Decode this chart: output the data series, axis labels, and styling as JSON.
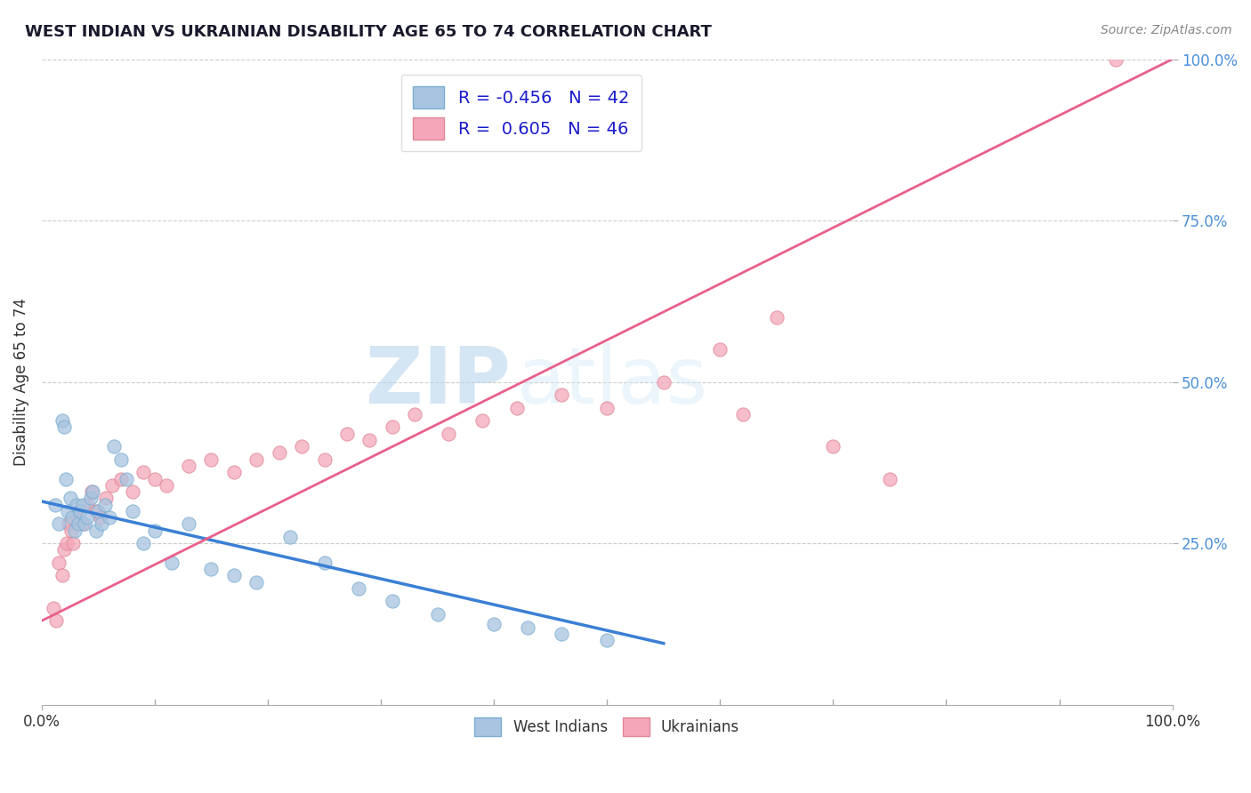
{
  "title": "WEST INDIAN VS UKRAINIAN DISABILITY AGE 65 TO 74 CORRELATION CHART",
  "source_text": "Source: ZipAtlas.com",
  "ylabel": "Disability Age 65 to 74",
  "xlim": [
    0,
    100
  ],
  "ylim": [
    0,
    100
  ],
  "ytick_positions": [
    25,
    50,
    75,
    100
  ],
  "west_indian_R": -0.456,
  "west_indian_N": 42,
  "ukrainian_R": 0.605,
  "ukrainian_N": 46,
  "west_indian_color": "#a8c4e0",
  "west_indian_edge_color": "#7aaed0",
  "ukrainian_color": "#f4a7b9",
  "ukrainian_edge_color": "#e08898",
  "west_indian_line_color": "#3a7fd5",
  "ukrainian_line_color": "#e8608a",
  "background_color": "#ffffff",
  "grid_color": "#cccccc",
  "title_color": "#1a1a2e",
  "watermark_zip": "ZIP",
  "watermark_atlas": "atlas",
  "wi_x": [
    1.2,
    1.5,
    1.8,
    2.0,
    2.1,
    2.3,
    2.5,
    2.7,
    2.9,
    3.1,
    3.2,
    3.4,
    3.6,
    3.8,
    4.0,
    4.3,
    4.5,
    4.8,
    5.0,
    5.3,
    5.6,
    6.0,
    6.4,
    7.0,
    7.5,
    8.0,
    9.0,
    10.0,
    11.5,
    13.0,
    15.0,
    17.0,
    19.0,
    22.0,
    25.0,
    28.0,
    31.0,
    35.0,
    40.0,
    43.0,
    46.0,
    50.0
  ],
  "wi_y": [
    31.0,
    28.0,
    44.0,
    43.0,
    35.0,
    30.0,
    32.0,
    29.0,
    27.0,
    31.0,
    28.0,
    30.0,
    31.0,
    28.0,
    29.0,
    32.0,
    33.0,
    27.0,
    30.0,
    28.0,
    31.0,
    29.0,
    40.0,
    38.0,
    35.0,
    30.0,
    25.0,
    27.0,
    22.0,
    28.0,
    21.0,
    20.0,
    19.0,
    26.0,
    22.0,
    18.0,
    16.0,
    14.0,
    12.5,
    12.0,
    11.0,
    10.0
  ],
  "uk_x": [
    1.0,
    1.3,
    1.5,
    1.8,
    2.0,
    2.2,
    2.4,
    2.6,
    2.8,
    3.0,
    3.3,
    3.6,
    4.0,
    4.4,
    4.8,
    5.2,
    5.7,
    6.2,
    7.0,
    8.0,
    9.0,
    10.0,
    11.0,
    13.0,
    15.0,
    17.0,
    19.0,
    21.0,
    23.0,
    25.0,
    27.0,
    29.0,
    31.0,
    33.0,
    36.0,
    39.0,
    42.0,
    46.0,
    50.0,
    55.0,
    60.0,
    65.0,
    62.0,
    70.0,
    75.0,
    95.0
  ],
  "uk_y": [
    15.0,
    13.0,
    22.0,
    20.0,
    24.0,
    25.0,
    28.0,
    27.0,
    25.0,
    29.0,
    30.0,
    28.0,
    31.0,
    33.0,
    30.0,
    29.0,
    32.0,
    34.0,
    35.0,
    33.0,
    36.0,
    35.0,
    34.0,
    37.0,
    38.0,
    36.0,
    38.0,
    39.0,
    40.0,
    38.0,
    42.0,
    41.0,
    43.0,
    45.0,
    42.0,
    44.0,
    46.0,
    48.0,
    46.0,
    50.0,
    55.0,
    60.0,
    45.0,
    40.0,
    35.0,
    100.0
  ],
  "wi_line_x0": 0.0,
  "wi_line_x1": 55.0,
  "wi_line_y0": 31.5,
  "wi_line_y1": 9.5,
  "uk_line_x0": 0.0,
  "uk_line_x1": 100.0,
  "uk_line_y0": 13.0,
  "uk_line_y1": 100.0
}
